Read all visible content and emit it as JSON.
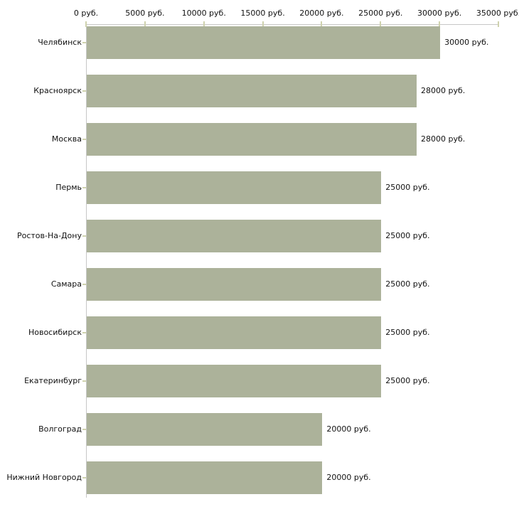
{
  "chart_data": {
    "type": "bar",
    "orientation": "horizontal",
    "title": "",
    "xlabel": "",
    "ylabel": "",
    "unit": "руб.",
    "xlim": [
      0,
      35000
    ],
    "grid": false,
    "legend": false,
    "categories": [
      "Челябинск",
      "Красноярск",
      "Москва",
      "Пермь",
      "Ростов-На-Дону",
      "Самара",
      "Новосибирск",
      "Екатеринбург",
      "Волгоград",
      "Нижний Новгород"
    ],
    "values": [
      30000,
      28000,
      28000,
      25000,
      25000,
      25000,
      25000,
      25000,
      20000,
      20000
    ],
    "value_labels": [
      "30000 руб.",
      "28000 руб.",
      "28000 руб.",
      "25000 руб.",
      "25000 руб.",
      "25000 руб.",
      "25000 руб.",
      "25000 руб.",
      "20000 руб.",
      "20000 руб."
    ],
    "x_tick_values": [
      0,
      5000,
      10000,
      15000,
      20000,
      25000,
      30000,
      35000
    ],
    "x_tick_labels": [
      "0 руб.",
      "5000 руб.",
      "10000 руб.",
      "15000 руб.",
      "20000 руб.",
      "25000 руб.",
      "30000 руб.",
      "35000 руб."
    ],
    "colors": {
      "bar": "#acb29a",
      "axis": "#c7c7c7",
      "tick": "#cfd2ae",
      "text": "#111111",
      "background": "#ffffff"
    }
  }
}
